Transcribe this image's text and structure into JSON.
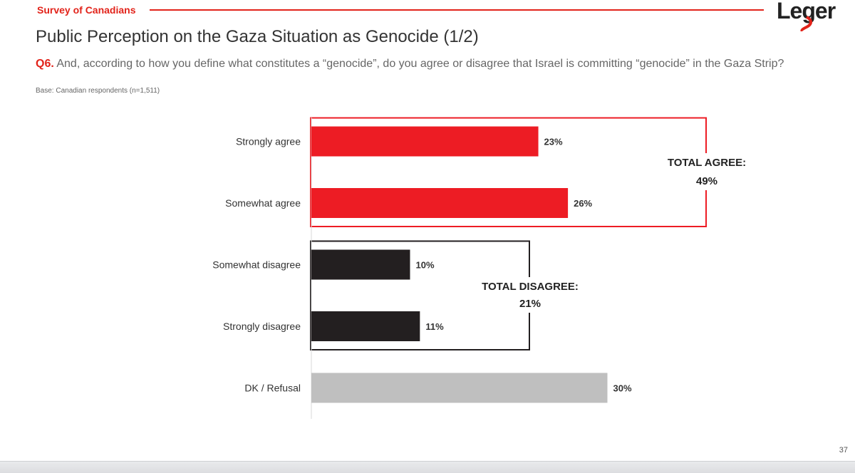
{
  "header": {
    "survey_label": "Survey of Canadians",
    "logo_text": "Leger"
  },
  "title": "Public Perception on the Gaza Situation as Genocide (1/2)",
  "question": {
    "number": "Q6.",
    "text": "And, according to how you define what constitutes a “genocide”, do you agree or disagree that Israel is committing “genocide” in the Gaza Strip?"
  },
  "base_note": "Base: Canadian respondents (n=1,511)",
  "page_number": "37",
  "colors": {
    "agree": "#ed1c24",
    "disagree": "#231f20",
    "dk": "#bfbfbf",
    "brand_red": "#e2231a"
  },
  "chart_data": {
    "type": "bar",
    "orientation": "horizontal",
    "categories": [
      "Strongly agree",
      "Somewhat agree",
      "Somewhat disagree",
      "Strongly disagree",
      "DK / Refusal"
    ],
    "values": [
      23,
      26,
      10,
      11,
      30
    ],
    "value_labels": [
      "23%",
      "26%",
      "10%",
      "11%",
      "30%"
    ],
    "groups": [
      {
        "label": "TOTAL AGREE:",
        "value_label": "49%",
        "value": 49,
        "categories": [
          "Strongly agree",
          "Somewhat agree"
        ],
        "color": "#ed1c24"
      },
      {
        "label": "TOTAL DISAGREE:",
        "value_label": "21%",
        "value": 21,
        "categories": [
          "Somewhat disagree",
          "Strongly disagree"
        ],
        "color": "#231f20"
      }
    ],
    "xlim": [
      0,
      40
    ],
    "grid": false
  }
}
